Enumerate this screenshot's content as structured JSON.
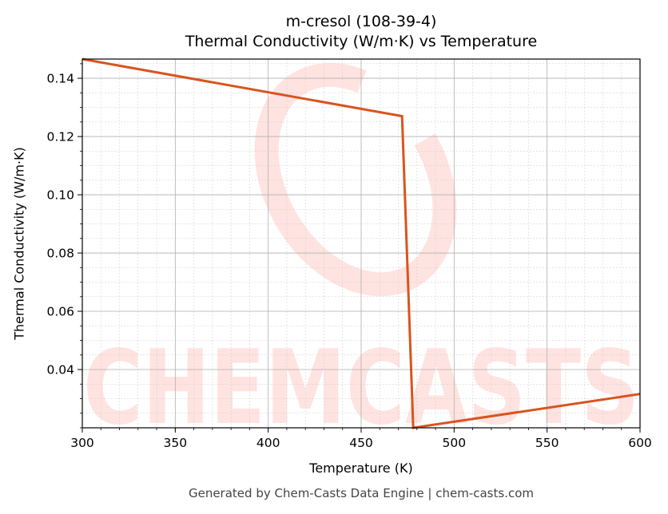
{
  "chart_data": {
    "type": "line",
    "title": "m-cresol (108-39-4)",
    "subtitle": "Thermal Conductivity (W/m·K) vs Temperature",
    "xlabel": "Temperature (K)",
    "ylabel": "Thermal Conductivity (W/m·K)",
    "xlim": [
      300,
      600
    ],
    "ylim": [
      0.02,
      0.1466
    ],
    "x_ticks": [
      300,
      350,
      400,
      450,
      500,
      550,
      600
    ],
    "x_tick_labels": [
      "300",
      "350",
      "400",
      "450",
      "500",
      "550",
      "600"
    ],
    "y_ticks": [
      0.04,
      0.06,
      0.08,
      0.1,
      0.12,
      0.14
    ],
    "y_tick_labels": [
      "0.04",
      "0.06",
      "0.08",
      "0.10",
      "0.12",
      "0.14"
    ],
    "grid": true,
    "minor_grid": true,
    "legend": null,
    "series": [
      {
        "name": "Thermal Conductivity",
        "color": "#d9541e",
        "x": [
          300,
          472,
          478,
          600
        ],
        "y": [
          0.1466,
          0.127,
          0.02,
          0.0316
        ]
      }
    ],
    "watermark": "CHEMCASTS",
    "footer": "Generated by Chem-Casts Data Engine | chem-casts.com"
  }
}
